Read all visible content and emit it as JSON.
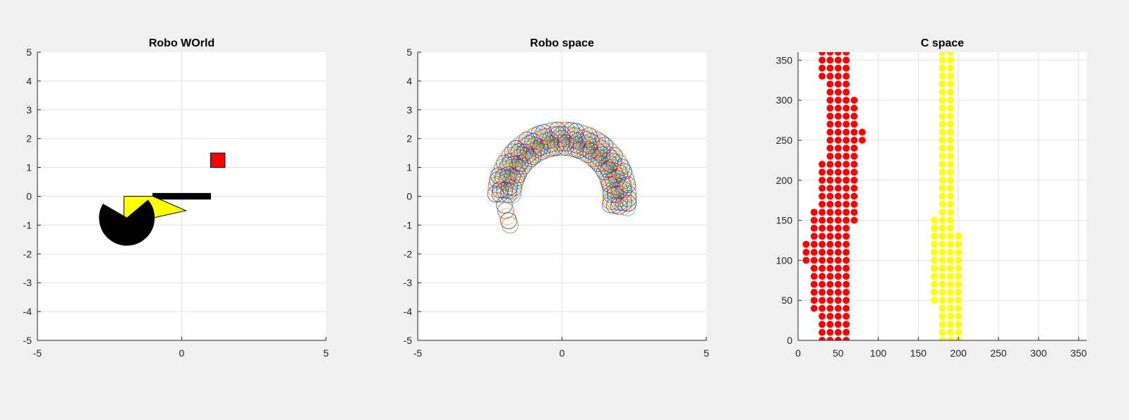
{
  "chart_data": [
    {
      "type": "diagram",
      "title": "Robo WOrld",
      "xlim": [
        -5,
        5
      ],
      "ylim": [
        -5,
        5
      ],
      "xticks": [
        -5,
        0,
        5
      ],
      "yticks": [
        -5,
        -4,
        -3,
        -2,
        -1,
        0,
        1,
        2,
        3,
        4,
        5
      ],
      "grid": true,
      "shapes": [
        {
          "name": "obstacle-square",
          "fill": "#ff0000",
          "points": [
            [
              1.0,
              1.0
            ],
            [
              1.5,
              1.0
            ],
            [
              1.5,
              1.5
            ],
            [
              1.0,
              1.5
            ]
          ]
        },
        {
          "name": "robot-arm-bar",
          "fill": "#000000",
          "points": [
            [
              -1.0,
              -0.1
            ],
            [
              1.0,
              -0.1
            ],
            [
              1.0,
              0.1
            ],
            [
              -1.0,
              0.1
            ]
          ]
        },
        {
          "name": "robot-yellow-arrow",
          "fill": "#ffff00",
          "points": [
            [
              -2.0,
              0.0
            ],
            [
              -1.0,
              0.0
            ],
            [
              0.15,
              -0.5
            ],
            [
              -1.0,
              -0.75
            ],
            [
              -2.0,
              -0.75
            ]
          ]
        },
        {
          "name": "robot-black-wedge",
          "fill": "#000000",
          "arc": {
            "cx": -1.9,
            "cy": -0.75,
            "r": 0.95,
            "start_deg": 150,
            "end_deg": 400
          }
        }
      ]
    },
    {
      "type": "scatter",
      "title": "Robo space",
      "xlim": [
        -5,
        5
      ],
      "ylim": [
        -5,
        5
      ],
      "xticks": [
        -5,
        0,
        5
      ],
      "yticks": [
        -5,
        -4,
        -3,
        -2,
        -1,
        0,
        1,
        2,
        3,
        4,
        5
      ],
      "grid": true,
      "marker": "open-circle",
      "marker_radius_data": 0.28,
      "arc": {
        "cx": 0.0,
        "cy": 0.0,
        "r_inner": 1.7,
        "r_outer": 2.3,
        "start_deg": -10,
        "end_deg": 180
      },
      "tail": {
        "x": [
          -2.0,
          -1.95,
          -1.9,
          -1.85,
          -1.8
        ],
        "y": [
          -0.3,
          -0.5,
          -0.7,
          -0.85,
          -1.0
        ]
      },
      "colors": [
        "#0072bd",
        "#d95319",
        "#edb120",
        "#7e2f8e",
        "#77ac30",
        "#4dbeee",
        "#a2142f"
      ]
    },
    {
      "type": "scatter",
      "title": "C space",
      "xlim": [
        0,
        360
      ],
      "ylim": [
        0,
        360
      ],
      "xticks": [
        0,
        50,
        100,
        150,
        200,
        250,
        300,
        350
      ],
      "yticks": [
        0,
        50,
        100,
        150,
        200,
        250,
        300,
        350
      ],
      "grid": true,
      "marker": "filled-circle",
      "series": [
        {
          "color": "#ff0000",
          "columns": [
            {
              "x": 10,
              "ymin": 100,
              "ymax": 120
            },
            {
              "x": 20,
              "ymin": 40,
              "ymax": 160
            },
            {
              "x": 30,
              "ymin": 0,
              "ymax": 220
            },
            {
              "x": 30,
              "ymin": 330,
              "ymax": 360
            },
            {
              "x": 40,
              "ymin": 0,
              "ymax": 360
            },
            {
              "x": 50,
              "ymin": 0,
              "ymax": 360
            },
            {
              "x": 60,
              "ymin": 0,
              "ymax": 360
            },
            {
              "x": 70,
              "ymin": 150,
              "ymax": 300
            },
            {
              "x": 80,
              "ymin": 250,
              "ymax": 260
            }
          ]
        },
        {
          "color": "#ffff00",
          "columns": [
            {
              "x": 170,
              "ymin": 50,
              "ymax": 150
            },
            {
              "x": 180,
              "ymin": 0,
              "ymax": 360
            },
            {
              "x": 190,
              "ymin": 0,
              "ymax": 360
            },
            {
              "x": 200,
              "ymin": 0,
              "ymax": 130
            }
          ]
        }
      ]
    }
  ]
}
